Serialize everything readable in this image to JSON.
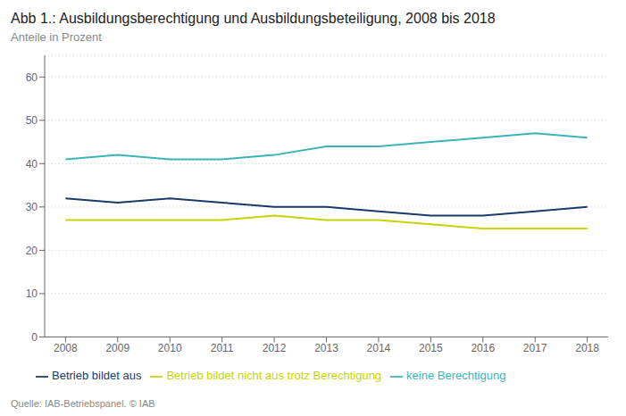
{
  "chart_data": {
    "type": "line",
    "title": "Abb 1.: Ausbildungsberechtigung und Ausbildungsbeteiligung, 2008 bis 2018",
    "subtitle": "Anteile in Prozent",
    "source": "Quelle: IAB-Betriebspanel. © IAB",
    "x": [
      2008,
      2009,
      2010,
      2011,
      2012,
      2013,
      2014,
      2015,
      2016,
      2017,
      2018
    ],
    "series": [
      {
        "name": "Betrieb bildet aus",
        "color": "#1a3a6b",
        "values": [
          32,
          31,
          32,
          31,
          30,
          30,
          29,
          28,
          28,
          29,
          30
        ]
      },
      {
        "name": "Betrieb bildet nicht aus trotz Berechtigung",
        "color": "#c8d400",
        "values": [
          27,
          27,
          27,
          27,
          28,
          27,
          27,
          26,
          25,
          25,
          25
        ]
      },
      {
        "name": "keine Berechtigung",
        "color": "#3ab5b5",
        "values": [
          41,
          42,
          41,
          41,
          42,
          44,
          44,
          45,
          46,
          47,
          46
        ]
      }
    ],
    "xlim": [
      2007.6,
      2018.4
    ],
    "xticks": [
      2008,
      2009,
      2010,
      2011,
      2012,
      2013,
      2014,
      2015,
      2016,
      2017,
      2018
    ],
    "ylim": [
      0,
      65
    ],
    "yticks": [
      0,
      10,
      20,
      30,
      40,
      50,
      60
    ],
    "grid": true,
    "legend": "bottom"
  }
}
